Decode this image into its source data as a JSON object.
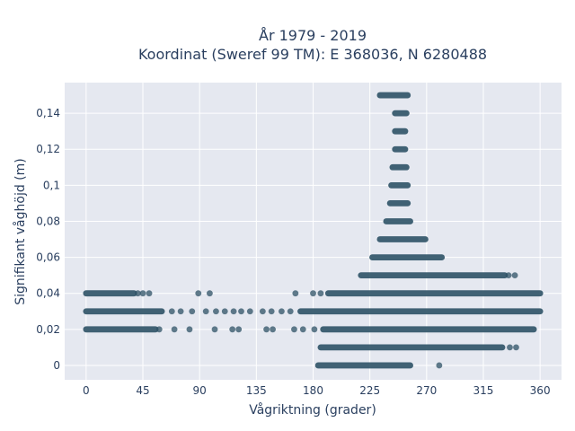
{
  "chart_data": {
    "type": "scatter",
    "title_line1": "År 1979 - 2019",
    "title_line2": "Koordinat (Sweref 99 TM): E 368036, N 6280488",
    "xlabel": "Vågriktning (grader)",
    "ylabel": "Signifikant våghöjd (m)",
    "xlim": [
      -17,
      377
    ],
    "ylim": [
      -0.008,
      0.157
    ],
    "x_ticks": [
      0,
      45,
      90,
      135,
      180,
      225,
      270,
      315,
      360
    ],
    "x_tick_labels": [
      "0",
      "45",
      "90",
      "135",
      "180",
      "225",
      "270",
      "315",
      "360"
    ],
    "y_ticks": [
      0,
      0.02,
      0.04,
      0.06,
      0.08,
      0.1,
      0.12,
      0.14
    ],
    "y_tick_labels": [
      "0",
      "0,02",
      "0,04",
      "0,06",
      "0,08",
      "0,1",
      "0,12",
      "0,14"
    ],
    "grid": true,
    "marker_color": "#2e5266",
    "plot_background": "#e5e8f0",
    "ranges": [
      {
        "y": 0.15,
        "x_from": 233,
        "x_to": 255
      },
      {
        "y": 0.14,
        "x_from": 245,
        "x_to": 254
      },
      {
        "y": 0.13,
        "x_from": 245,
        "x_to": 253
      },
      {
        "y": 0.12,
        "x_from": 245,
        "x_to": 253
      },
      {
        "y": 0.11,
        "x_from": 243,
        "x_to": 254
      },
      {
        "y": 0.1,
        "x_from": 242,
        "x_to": 255
      },
      {
        "y": 0.09,
        "x_from": 241,
        "x_to": 255
      },
      {
        "y": 0.08,
        "x_from": 238,
        "x_to": 257
      },
      {
        "y": 0.07,
        "x_from": 233,
        "x_to": 269
      },
      {
        "y": 0.06,
        "x_from": 227,
        "x_to": 282
      },
      {
        "y": 0.05,
        "x_from": 218,
        "x_to": 332
      },
      {
        "y": 0.04,
        "x_from": 0,
        "x_to": 38
      },
      {
        "y": 0.04,
        "x_from": 192,
        "x_to": 360
      },
      {
        "y": 0.03,
        "x_from": 0,
        "x_to": 60
      },
      {
        "y": 0.03,
        "x_from": 170,
        "x_to": 360
      },
      {
        "y": 0.02,
        "x_from": 0,
        "x_to": 55
      },
      {
        "y": 0.02,
        "x_from": 188,
        "x_to": 355
      },
      {
        "y": 0.01,
        "x_from": 186,
        "x_to": 330
      },
      {
        "y": 0,
        "x_from": 184,
        "x_to": 257
      }
    ],
    "points": [
      {
        "x": 41,
        "y": 0.04
      },
      {
        "x": 45,
        "y": 0.04
      },
      {
        "x": 50,
        "y": 0.04
      },
      {
        "x": 89,
        "y": 0.04
      },
      {
        "x": 98,
        "y": 0.04
      },
      {
        "x": 166,
        "y": 0.04
      },
      {
        "x": 180,
        "y": 0.04
      },
      {
        "x": 186,
        "y": 0.04
      },
      {
        "x": 335,
        "y": 0.05
      },
      {
        "x": 340,
        "y": 0.05
      },
      {
        "x": 68,
        "y": 0.03
      },
      {
        "x": 75,
        "y": 0.03
      },
      {
        "x": 84,
        "y": 0.03
      },
      {
        "x": 95,
        "y": 0.03
      },
      {
        "x": 103,
        "y": 0.03
      },
      {
        "x": 110,
        "y": 0.03
      },
      {
        "x": 117,
        "y": 0.03
      },
      {
        "x": 123,
        "y": 0.03
      },
      {
        "x": 130,
        "y": 0.03
      },
      {
        "x": 140,
        "y": 0.03
      },
      {
        "x": 147,
        "y": 0.03
      },
      {
        "x": 155,
        "y": 0.03
      },
      {
        "x": 162,
        "y": 0.03
      },
      {
        "x": 58,
        "y": 0.02
      },
      {
        "x": 70,
        "y": 0.02
      },
      {
        "x": 82,
        "y": 0.02
      },
      {
        "x": 102,
        "y": 0.02
      },
      {
        "x": 116,
        "y": 0.02
      },
      {
        "x": 121,
        "y": 0.02
      },
      {
        "x": 143,
        "y": 0.02
      },
      {
        "x": 148,
        "y": 0.02
      },
      {
        "x": 165,
        "y": 0.02
      },
      {
        "x": 172,
        "y": 0.02
      },
      {
        "x": 181,
        "y": 0.02
      },
      {
        "x": 336,
        "y": 0.01
      },
      {
        "x": 341,
        "y": 0.01
      },
      {
        "x": 280,
        "y": 0
      }
    ]
  }
}
